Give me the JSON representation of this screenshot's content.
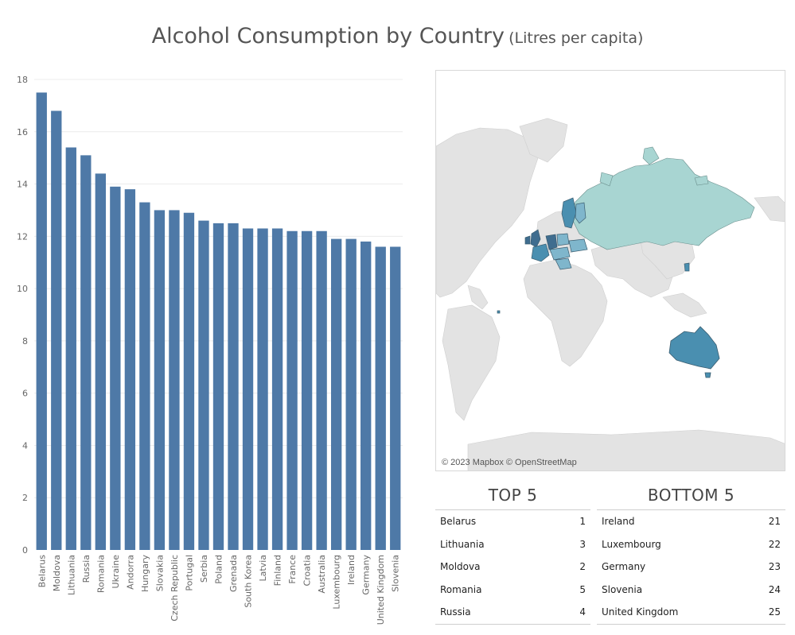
{
  "title": {
    "main": "Alcohol Consumption by Country",
    "sub": "(Litres per capita)"
  },
  "chart_data": {
    "type": "bar",
    "categories": [
      "Belarus",
      "Moldova",
      "Lithuania",
      "Russia",
      "Romania",
      "Ukraine",
      "Andorra",
      "Hungary",
      "Slovakia",
      "Czech Republic",
      "Portugal",
      "Serbia",
      "Poland",
      "Grenada",
      "South Korea",
      "Latvia",
      "Finland",
      "France",
      "Croatia",
      "Australia",
      "Luxembourg",
      "Ireland",
      "Germany",
      "United Kingdom",
      "Slovenia"
    ],
    "values": [
      17.5,
      16.8,
      15.4,
      15.1,
      14.4,
      13.9,
      13.8,
      13.3,
      13.0,
      13.0,
      12.9,
      12.6,
      12.5,
      12.5,
      12.3,
      12.3,
      12.3,
      12.2,
      12.2,
      12.2,
      11.9,
      11.9,
      11.8,
      11.6,
      11.6
    ],
    "ylim": [
      0,
      18
    ],
    "yticks": [
      0,
      2,
      4,
      6,
      8,
      10,
      12,
      14,
      16,
      18
    ],
    "grid": true,
    "bar_color": "#4e79a7"
  },
  "map": {
    "attribution": "© 2023 Mapbox © OpenStreetMap",
    "colors": {
      "land": "#e3e3e3",
      "russia": "#a8d5d2",
      "highlight_dark": "#4a8fb0",
      "highlight_mid": "#7fb6cc",
      "ocean": "#ffffff"
    }
  },
  "top5": {
    "title": "TOP 5",
    "rows": [
      {
        "country": "Belarus",
        "rank": "1"
      },
      {
        "country": "Lithuania",
        "rank": "3"
      },
      {
        "country": "Moldova",
        "rank": "2"
      },
      {
        "country": "Romania",
        "rank": "5"
      },
      {
        "country": "Russia",
        "rank": "4"
      }
    ]
  },
  "bottom5": {
    "title": "BOTTOM 5",
    "rows": [
      {
        "country": "Ireland",
        "rank": "21"
      },
      {
        "country": "Luxembourg",
        "rank": "22"
      },
      {
        "country": "Germany",
        "rank": "23"
      },
      {
        "country": "Slovenia",
        "rank": "24"
      },
      {
        "country": "United Kingdom",
        "rank": "25"
      }
    ]
  }
}
